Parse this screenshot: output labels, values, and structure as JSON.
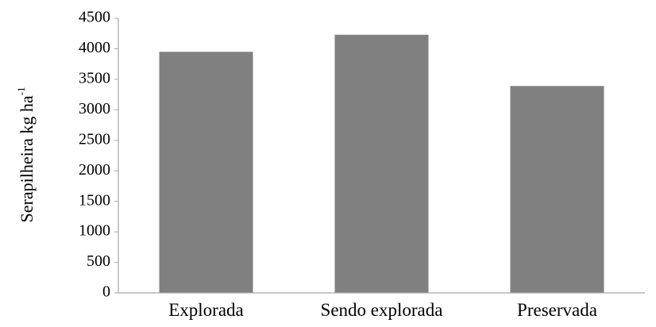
{
  "chart_data": {
    "type": "bar",
    "title": "",
    "xlabel": "",
    "ylabel": "Serapilheira kg ha",
    "ylabel_superscript": "-1",
    "categories": [
      "Explorada",
      "Sendo explorada",
      "Preservada"
    ],
    "values": [
      3950,
      4230,
      3390
    ],
    "ylim": [
      0,
      4500
    ],
    "yticks": [
      0,
      500,
      1000,
      1500,
      2000,
      2500,
      3000,
      3500,
      4000,
      4500
    ],
    "ytick_labels": [
      "0",
      "500",
      "1000",
      "1500",
      "2000",
      "2500",
      "3000",
      "3500",
      "4000",
      "4500"
    ],
    "grid": false,
    "legend": "none",
    "colors": {
      "bar": "#808080",
      "axis": "#a6a6a6",
      "text": "#000000"
    }
  }
}
